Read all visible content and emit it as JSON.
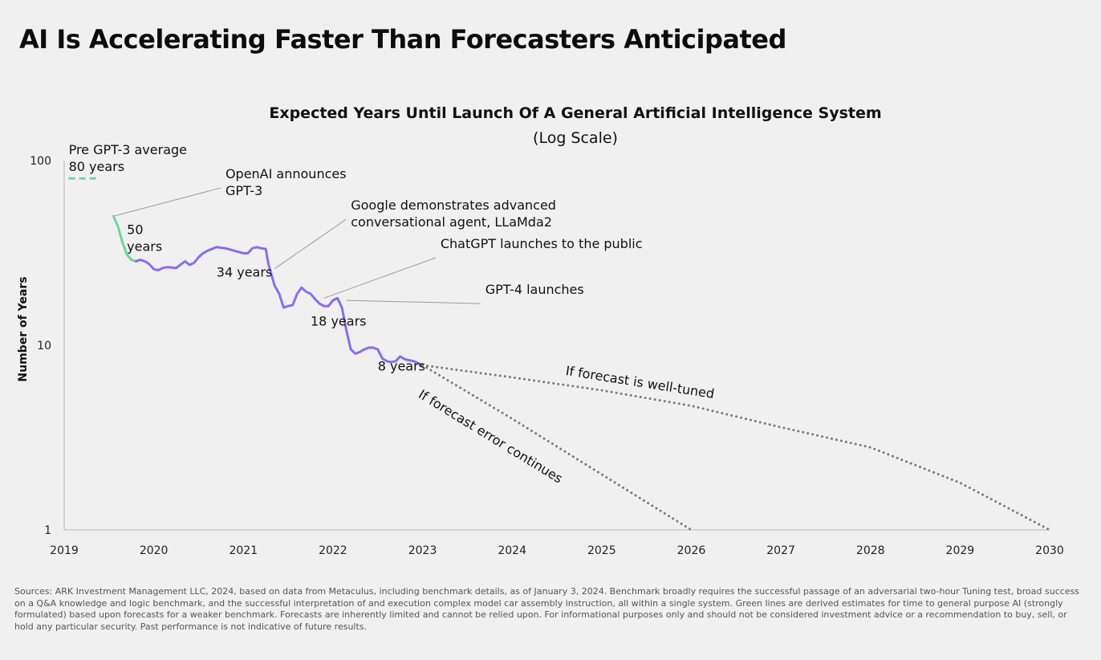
{
  "page": {
    "title": "AI Is Accelerating Faster Than Forecasters Anticipated",
    "footnote": "Sources: ARK Investment Management LLC, 2024, based on data from Metaculus, including benchmark details, as of January 3, 2024. Benchmark broadly requires the successful passage of an adversarial two-hour Tuning test, broad success on a Q&A knowledge and logic benchmark, and the successful interpretation of and execution complex model car assembly instruction, all within a single system. Green lines are derived estimates for time to general purpose AI (strongly formulated) based upon forecasts for a weaker benchmark. Forecasts are inherently limited and cannot be relied upon. For informational purposes only and should not be considered investment advice or a recommendation to buy, sell, or hold any particular security. Past performance is not indicative of future results."
  },
  "chart_data": {
    "type": "line",
    "title": "Expected Years Until Launch Of A General Artificial Intelligence System",
    "subtitle": "(Log Scale)",
    "xlabel": "",
    "ylabel": "Number of Years",
    "y_scale": "log",
    "xlim": [
      2019,
      2030
    ],
    "ylim": [
      1,
      100
    ],
    "x_ticks": [
      "2019",
      "2020",
      "2021",
      "2022",
      "2023",
      "2024",
      "2025",
      "2026",
      "2027",
      "2028",
      "2029",
      "2030"
    ],
    "y_ticks": [
      {
        "value": 100,
        "label": "100"
      },
      {
        "value": 10,
        "label": "10"
      },
      {
        "value": 1,
        "label": "1"
      }
    ],
    "grid": false,
    "colors": {
      "green": "#6fd4a0",
      "purple": "#8c6cf0",
      "forecast": "#7a7a7a",
      "leader": "#999999"
    },
    "series": [
      {
        "key": "pre-gpt3-average",
        "color": "#6fd4a0",
        "dash": true,
        "x": [
          2019.05,
          2019.4
        ],
        "y": [
          80,
          80
        ]
      },
      {
        "key": "green-estimate",
        "color": "#6fd4a0",
        "x": [
          2019.55,
          2019.6,
          2019.65,
          2019.7,
          2019.75,
          2019.8
        ],
        "y": [
          50,
          44,
          36,
          31,
          29,
          28.5
        ]
      },
      {
        "key": "forecast",
        "color": "#8c6cf0",
        "x": [
          2019.8,
          2019.85,
          2019.9,
          2019.95,
          2020.0,
          2020.05,
          2020.1,
          2020.15,
          2020.25,
          2020.35,
          2020.4,
          2020.45,
          2020.5,
          2020.55,
          2020.6,
          2020.7,
          2020.8,
          2020.9,
          2021.0,
          2021.05,
          2021.1,
          2021.15,
          2021.2,
          2021.25,
          2021.28,
          2021.35,
          2021.4,
          2021.45,
          2021.5,
          2021.55,
          2021.6,
          2021.65,
          2021.7,
          2021.75,
          2021.8,
          2021.85,
          2021.9,
          2021.95,
          2022.0,
          2022.05,
          2022.1,
          2022.15,
          2022.2,
          2022.25,
          2022.3,
          2022.35,
          2022.4,
          2022.45,
          2022.5,
          2022.55,
          2022.6,
          2022.65,
          2022.7,
          2022.75,
          2022.8,
          2022.85,
          2022.9,
          2023.0
        ],
        "y": [
          28.5,
          29,
          28.5,
          27.5,
          25.8,
          25.5,
          26.2,
          26.5,
          26.2,
          28.5,
          27.2,
          28,
          30,
          31.5,
          32.5,
          34,
          33.5,
          32.5,
          31.5,
          31.5,
          33.5,
          34,
          33.5,
          33.2,
          27.5,
          21,
          19,
          16,
          16.3,
          16.5,
          19,
          20.5,
          19.5,
          19,
          17.8,
          16.8,
          16.3,
          16.3,
          17.5,
          18,
          16,
          12,
          9.5,
          9.0,
          9.2,
          9.5,
          9.7,
          9.7,
          9.5,
          8.5,
          8.2,
          8.1,
          8.2,
          8.7,
          8.4,
          8.3,
          8.2,
          7.8
        ]
      },
      {
        "key": "if-forecast-is-well-tuned",
        "label": "If forecast is well-tuned",
        "color": "#7a7a7a",
        "dotted": true,
        "x": [
          2023.0,
          2024.0,
          2025.0,
          2026.0,
          2027.0,
          2028.0,
          2029.0,
          2030.0
        ],
        "y": [
          7.8,
          6.7,
          5.7,
          4.7,
          3.6,
          2.8,
          1.8,
          1.0
        ]
      },
      {
        "key": "if-forecast-error-continues",
        "label": "If forecast error continues",
        "color": "#7a7a7a",
        "dotted": true,
        "x": [
          2023.0,
          2024.0,
          2025.0,
          2026.0
        ],
        "y": [
          7.8,
          4.0,
          2.0,
          1.0
        ]
      }
    ],
    "annotations": [
      {
        "key": "pre-gpt3",
        "lines": [
          "Pre GPT-3 average",
          "80 years"
        ],
        "x": 2019.05,
        "y": 100
      },
      {
        "key": "openai-gpt3",
        "lines": [
          "OpenAI announces",
          "GPT-3"
        ],
        "x": 2020.8,
        "y": 74,
        "pointer_x": 2019.55,
        "pointer_y": 50
      },
      {
        "key": "google-llamda2",
        "lines": [
          "Google demonstrates advanced",
          "conversational agent, LLaMda2"
        ],
        "x": 2022.2,
        "y": 50,
        "pointer_x": 2021.35,
        "pointer_y": 26
      },
      {
        "key": "chatgpt",
        "lines": [
          "ChatGPT launches to the public"
        ],
        "x": 2023.2,
        "y": 31,
        "pointer_x": 2021.9,
        "pointer_y": 18
      },
      {
        "key": "gpt4",
        "lines": [
          "GPT-4 launches"
        ],
        "x": 2023.7,
        "y": 17.5,
        "pointer_x": 2022.15,
        "pointer_y": 17.5
      }
    ],
    "data_labels": [
      {
        "key": "50-years",
        "lines": [
          "50",
          "years"
        ],
        "x": 2019.7,
        "y": 40
      },
      {
        "key": "34-years",
        "lines": [
          "34 years"
        ],
        "x": 2020.7,
        "y": 23.5
      },
      {
        "key": "18-years",
        "lines": [
          "18 years"
        ],
        "x": 2021.75,
        "y": 12.8
      },
      {
        "key": "8-years",
        "lines": [
          "8 years"
        ],
        "x": 2022.5,
        "y": 7.3
      }
    ]
  }
}
